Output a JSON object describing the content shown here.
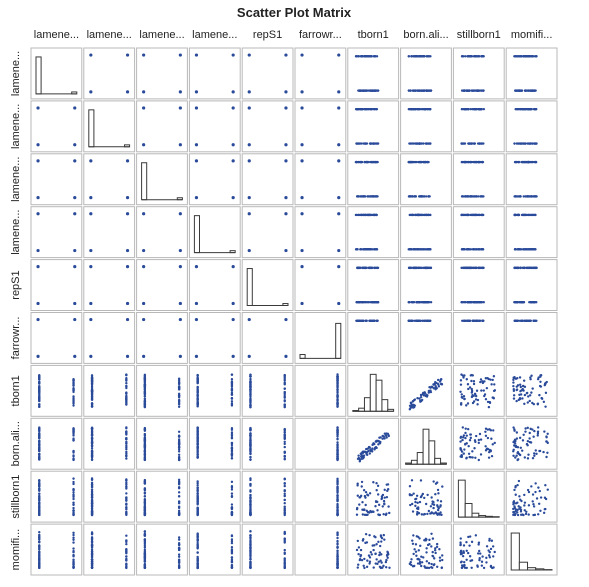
{
  "chart_data": {
    "type": "scatter-matrix",
    "title": "Scatter Plot Matrix",
    "variables": [
      {
        "label": "lamene...",
        "kind": "binary"
      },
      {
        "label": "lamene...",
        "kind": "binary"
      },
      {
        "label": "lamene...",
        "kind": "binary"
      },
      {
        "label": "lamene...",
        "kind": "binary"
      },
      {
        "label": "repS1",
        "kind": "binary"
      },
      {
        "label": "farrowr...",
        "kind": "binary"
      },
      {
        "label": "tborn1",
        "kind": "count"
      },
      {
        "label": "born.ali...",
        "kind": "count"
      },
      {
        "label": "stillborn1",
        "kind": "count"
      },
      {
        "label": "momifi...",
        "kind": "count"
      }
    ],
    "diagonal": "histogram",
    "binary_histogram_share_of_zero": [
      0.95,
      0.95,
      0.95,
      0.95,
      0.95,
      0.1
    ],
    "count_histograms": [
      [
        0.02,
        0.08,
        0.35,
        0.95,
        0.8,
        0.3,
        0.05
      ],
      [
        0.03,
        0.1,
        0.3,
        0.9,
        0.6,
        0.15,
        0.03
      ],
      [
        0.95,
        0.35,
        0.1,
        0.04,
        0.02,
        0.01
      ],
      [
        0.95,
        0.2,
        0.06,
        0.03,
        0.01
      ]
    ],
    "colors": {
      "marker": "#2a4a9a",
      "frame": "#b8b8b8",
      "bar_outline": "#3a3a3a"
    }
  }
}
